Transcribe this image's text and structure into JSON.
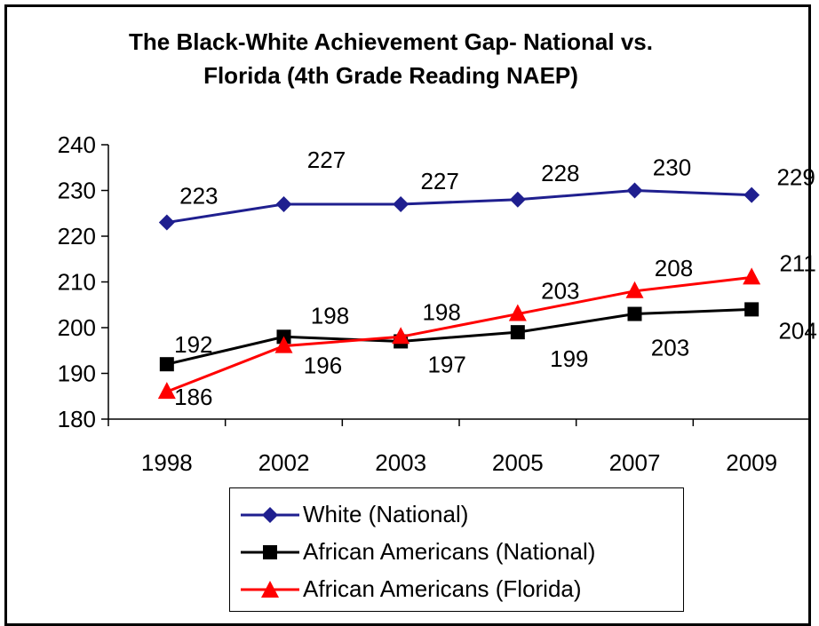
{
  "chart_data": {
    "type": "line",
    "title_line1": "The Black-White Achievement Gap- National vs.",
    "title_line2": "Florida (4th Grade Reading NAEP)",
    "categories": [
      "1998",
      "2002",
      "2003",
      "2005",
      "2007",
      "2009"
    ],
    "ylim": [
      180,
      240
    ],
    "yticks": [
      "180",
      "190",
      "200",
      "210",
      "220",
      "230",
      "240"
    ],
    "grid": false,
    "legend_position": "bottom",
    "series": [
      {
        "name": "White (National)",
        "values": [
          223,
          227,
          227,
          228,
          230,
          229
        ],
        "color": "#1f1f8f",
        "marker": "diamond"
      },
      {
        "name": "African Americans (National)",
        "values": [
          192,
          198,
          197,
          199,
          203,
          204
        ],
        "color": "#000000",
        "marker": "square"
      },
      {
        "name": "African Americans (Florida)",
        "values": [
          186,
          196,
          198,
          203,
          208,
          211
        ],
        "color": "#ff0000",
        "marker": "triangle"
      }
    ]
  }
}
